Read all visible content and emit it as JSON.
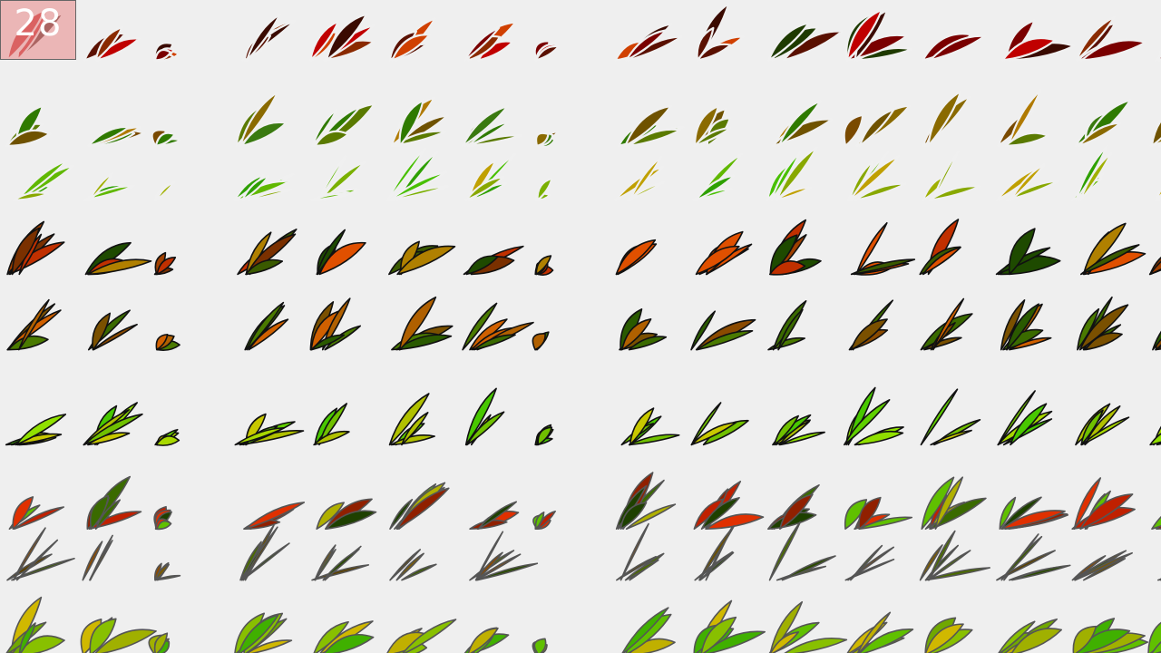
{
  "counter": {
    "value": "28"
  },
  "grid": {
    "columns": 16,
    "rows": [
      {
        "style": "white-outline",
        "palette": [
          "#7a0000",
          "#c00000",
          "#3a0a00",
          "#8a2a00",
          "#d04000",
          "#1e3a00",
          "#5a1000"
        ]
      },
      {
        "style": "white-outline",
        "palette": [
          "#2f7a00",
          "#6f5200",
          "#8a6a00",
          "#3a7a10",
          "#b07a00",
          "#5a7a00",
          "#7a4a00"
        ]
      },
      {
        "style": "white-outline",
        "palette": [
          "#48c000",
          "#7ab000",
          "#a0b000",
          "#2ea000",
          "#c0a000",
          "#60b800",
          "#88a800"
        ]
      },
      {
        "style": "black-outline",
        "palette": [
          "#c03000",
          "#e05000",
          "#3a5a00",
          "#7a3000",
          "#a04000",
          "#1e4a00",
          "#b08000"
        ]
      },
      {
        "style": "black-outline",
        "palette": [
          "#3a6a00",
          "#7a5000",
          "#b06000",
          "#2a5a00",
          "#d06000",
          "#4a7a00",
          "#8a4a00"
        ]
      },
      {
        "style": "black-outline",
        "palette": [
          "#60d000",
          "#90e000",
          "#b0c000",
          "#48c800",
          "#a8d800",
          "#70c000",
          "#c8c800"
        ]
      },
      {
        "style": "grey-outline",
        "palette": [
          "#c02000",
          "#e03000",
          "#3a6a00",
          "#902000",
          "#b0b000",
          "#60c000",
          "#1e4000"
        ]
      },
      {
        "style": "grey-outline",
        "palette": [
          "#5a4000",
          "#7a5a00",
          "#3a5a00",
          "#8a4a00",
          "#4a6a00",
          "#6a5000",
          "#2a4a00"
        ]
      },
      {
        "style": "grey-outline",
        "palette": [
          "#60c000",
          "#a0b000",
          "#c0b000",
          "#40b000",
          "#88c000",
          "#d0b800",
          "#70a800"
        ]
      }
    ]
  }
}
